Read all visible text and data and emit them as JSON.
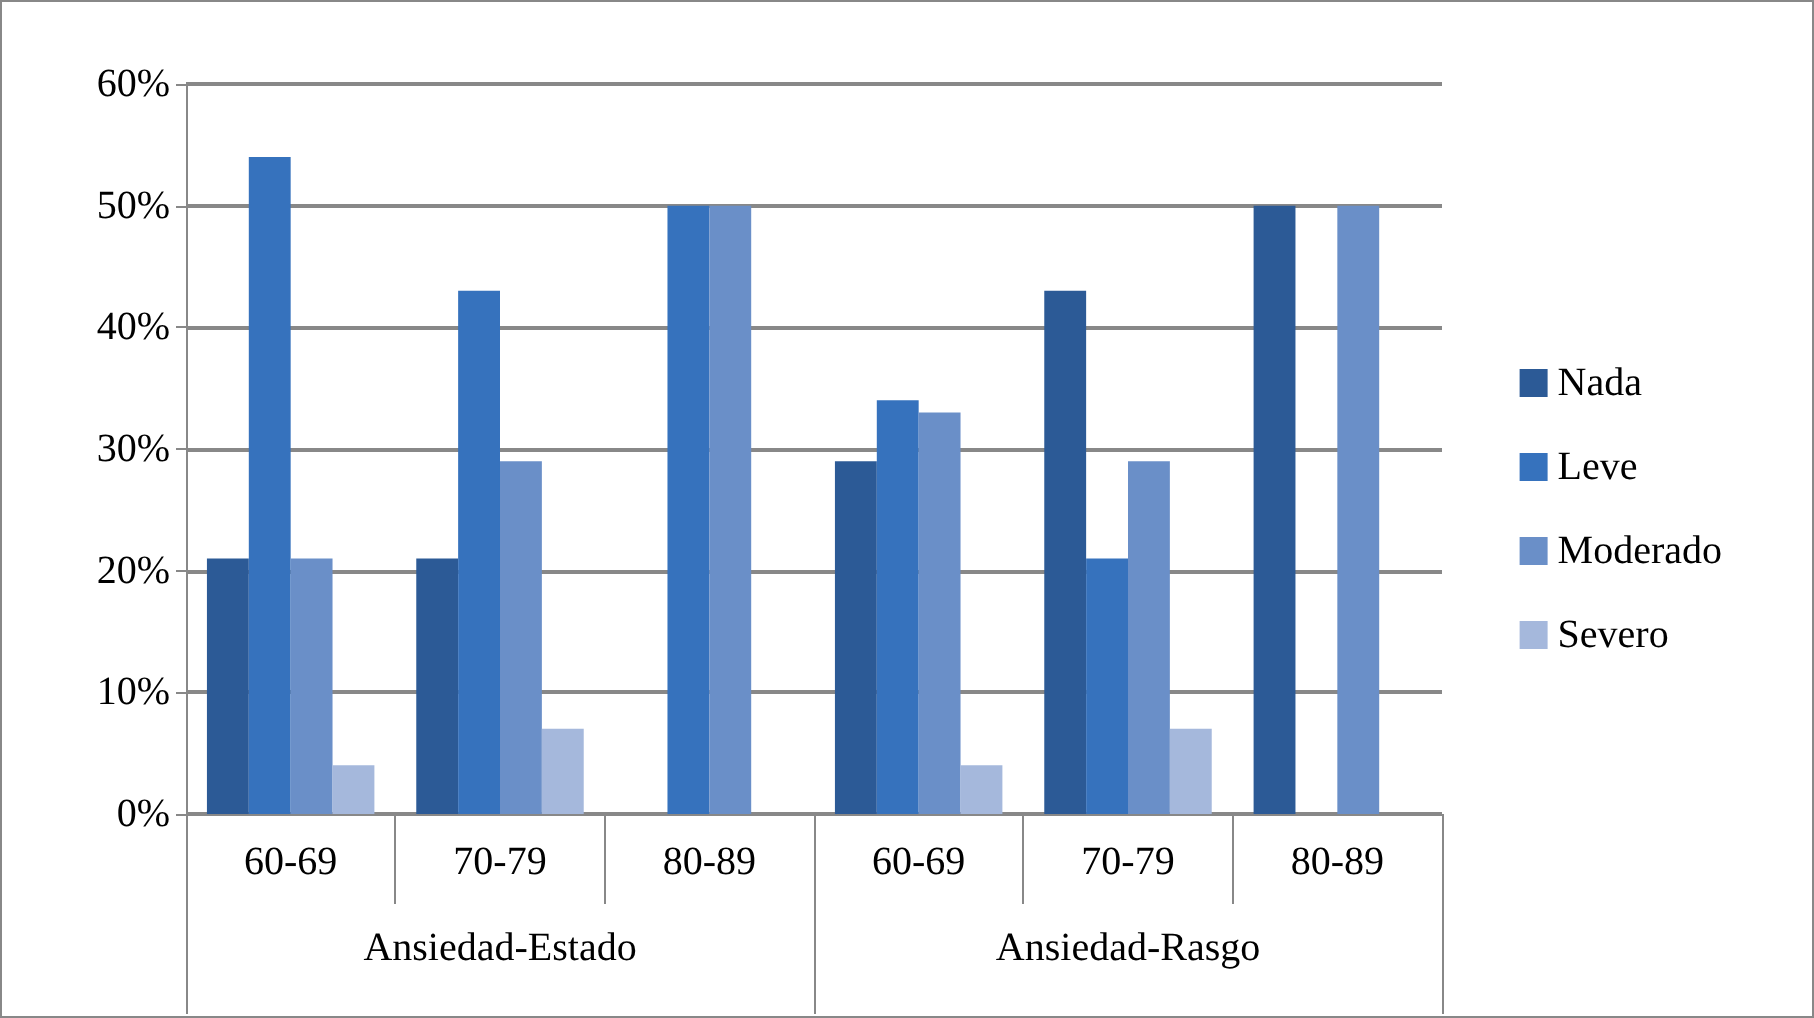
{
  "chart_data": {
    "type": "bar",
    "categories": [
      "60-69",
      "70-79",
      "80-89",
      "60-69",
      "70-79",
      "80-89"
    ],
    "annotations": [
      "Ansiedad-Estado",
      "Ansiedad-Rasgo"
    ],
    "series": [
      {
        "name": "Nada",
        "color": "#2c5a96",
        "values": [
          21,
          21,
          0,
          29,
          43,
          50
        ]
      },
      {
        "name": "Leve",
        "color": "#3672bd",
        "values": [
          54,
          43,
          50,
          34,
          21,
          0
        ]
      },
      {
        "name": "Moderado",
        "color": "#6a8fc8",
        "values": [
          21,
          29,
          50,
          33,
          29,
          50
        ]
      },
      {
        "name": "Severo",
        "color": "#a5b8dc",
        "values": [
          4,
          7,
          0,
          4,
          7,
          0
        ]
      }
    ],
    "ylim": [
      0,
      60
    ],
    "yticks": [
      {
        "value": 0,
        "label": "0%"
      },
      {
        "value": 10,
        "label": "10%"
      },
      {
        "value": 20,
        "label": "20%"
      },
      {
        "value": 30,
        "label": "30%"
      },
      {
        "value": 40,
        "label": "40%"
      },
      {
        "value": 50,
        "label": "50%"
      },
      {
        "value": 60,
        "label": "60%"
      }
    ],
    "grid": "y",
    "legend": "right"
  }
}
